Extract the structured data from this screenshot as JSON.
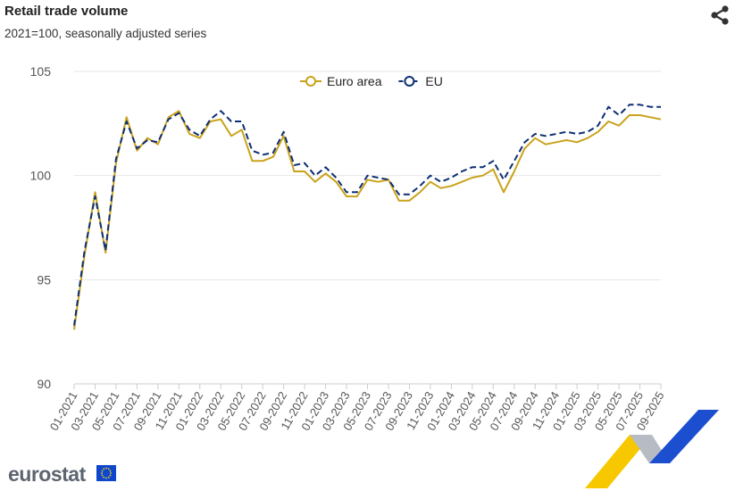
{
  "header": {
    "title": "Retail trade volume",
    "subtitle": "2021=100, seasonally adjusted series",
    "share_icon": "share-icon"
  },
  "brand": {
    "logo_text": "eurostat",
    "flag_icon": "eu-flag-icon"
  },
  "colors": {
    "euro_area": "#C9A31A",
    "eu": "#0E2F74",
    "grid": "#E6E6E6",
    "axis_text": "#555555"
  },
  "chart_data": {
    "type": "line",
    "title": "Retail trade volume",
    "subtitle": "2021=100, seasonally adjusted series",
    "xlabel": "",
    "ylabel": "",
    "ylim": [
      90,
      105
    ],
    "yticks": [
      90,
      95,
      100,
      105
    ],
    "grid": true,
    "legend_position": "top-center",
    "x": [
      "01-2021",
      "02-2021",
      "03-2021",
      "04-2021",
      "05-2021",
      "06-2021",
      "07-2021",
      "08-2021",
      "09-2021",
      "10-2021",
      "11-2021",
      "12-2021",
      "01-2022",
      "02-2022",
      "03-2022",
      "04-2022",
      "05-2022",
      "06-2022",
      "07-2022",
      "08-2022",
      "09-2022",
      "10-2022",
      "11-2022",
      "12-2022",
      "01-2023",
      "02-2023",
      "03-2023",
      "04-2023",
      "05-2023",
      "06-2023",
      "07-2023",
      "08-2023",
      "09-2023",
      "10-2023",
      "11-2023",
      "12-2023",
      "01-2024",
      "02-2024",
      "03-2024",
      "04-2024",
      "05-2024",
      "06-2024",
      "07-2024",
      "08-2024",
      "09-2024",
      "10-2024",
      "11-2024",
      "12-2024",
      "01-2025",
      "02-2025",
      "03-2025",
      "04-2025",
      "05-2025",
      "06-2025",
      "07-2025",
      "08-2025",
      "09-2025"
    ],
    "xtick_labels": [
      "01-2021",
      "03-2021",
      "05-2021",
      "07-2021",
      "09-2021",
      "11-2021",
      "01-2022",
      "03-2022",
      "05-2022",
      "07-2022",
      "09-2022",
      "11-2022",
      "01-2023",
      "03-2023",
      "05-2023",
      "07-2023",
      "09-2023",
      "11-2023",
      "01-2024",
      "03-2024",
      "05-2024",
      "07-2024",
      "09-2024",
      "11-2024",
      "01-2025",
      "03-2025",
      "05-2025",
      "07-2025",
      "09-2025"
    ],
    "series": [
      {
        "name": "Euro area",
        "style": "solid",
        "values": [
          92.6,
          96.2,
          99.2,
          96.3,
          100.6,
          102.8,
          101.2,
          101.8,
          101.5,
          102.8,
          103.1,
          102.0,
          101.8,
          102.6,
          102.7,
          101.9,
          102.2,
          100.7,
          100.7,
          100.9,
          101.9,
          100.2,
          100.2,
          99.7,
          100.1,
          99.7,
          99.0,
          99.0,
          99.8,
          99.7,
          99.8,
          98.8,
          98.8,
          99.2,
          99.7,
          99.4,
          99.5,
          99.7,
          99.9,
          100.0,
          100.3,
          99.2,
          100.2,
          101.3,
          101.8,
          101.5,
          101.6,
          101.7,
          101.6,
          101.8,
          102.1,
          102.6,
          102.4,
          102.9,
          102.9,
          102.8,
          102.7
        ]
      },
      {
        "name": "EU",
        "style": "dashed",
        "values": [
          92.8,
          96.4,
          99.0,
          96.4,
          100.8,
          102.6,
          101.3,
          101.7,
          101.6,
          102.7,
          103.0,
          102.2,
          101.9,
          102.7,
          103.1,
          102.6,
          102.6,
          101.2,
          101.0,
          101.1,
          102.1,
          100.5,
          100.6,
          100.0,
          100.4,
          99.9,
          99.2,
          99.2,
          100.0,
          99.9,
          99.8,
          99.1,
          99.1,
          99.5,
          100.0,
          99.7,
          99.9,
          100.2,
          100.4,
          100.4,
          100.7,
          99.8,
          100.7,
          101.6,
          102.0,
          101.9,
          102.0,
          102.1,
          102.0,
          102.1,
          102.4,
          103.3,
          102.9,
          103.4,
          103.4,
          103.3,
          103.3
        ]
      }
    ]
  }
}
